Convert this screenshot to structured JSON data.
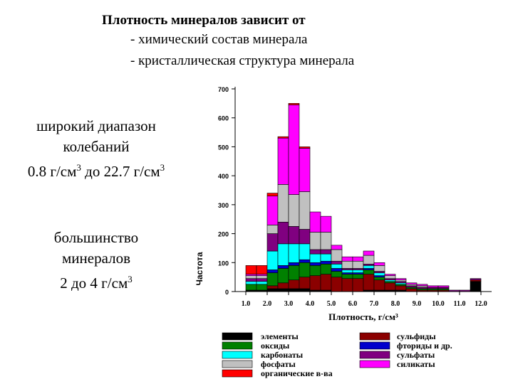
{
  "slide": {
    "title": "Плотность минералов зависит от",
    "bullets": [
      "- химический состав минерала",
      "- кристаллическая структура минерала"
    ],
    "block1": {
      "line1": "широкий диапазон",
      "line2": "колебаний",
      "line3_a": "0.8 г/см",
      "line3_b": " до 22.7 г/см",
      "sup": "3"
    },
    "block2": {
      "line1": "большинство",
      "line2": "минералов",
      "line3_a": "2 до 4 г/см",
      "sup": "3"
    }
  },
  "chart_data": {
    "type": "bar",
    "stacked": true,
    "xlabel": "Плотность, г/см³",
    "ylabel": "Частота",
    "ylim": [
      0,
      700
    ],
    "yticks": [
      0,
      100,
      200,
      300,
      400,
      500,
      600,
      700
    ],
    "xlim": [
      0.5,
      12.5
    ],
    "xticks": [
      "1.0",
      "2.0",
      "3.0",
      "4.0",
      "5.0",
      "6.0",
      "7.0",
      "8.0",
      "9.0",
      "10.0",
      "11.0",
      "12.0"
    ],
    "bin_width": 0.5,
    "bin_starts": [
      0.5,
      1.0,
      1.5,
      2.0,
      2.5,
      3.0,
      3.5,
      4.0,
      4.5,
      5.0,
      5.5,
      6.0,
      6.5,
      7.0,
      7.5,
      8.0,
      8.5,
      9.0,
      9.5,
      10.0,
      10.5,
      11.0,
      11.5
    ],
    "series": [
      {
        "name": "элементы",
        "color": "#000000",
        "values": [
          0,
          5,
          5,
          10,
          10,
          10,
          10,
          5,
          5,
          0,
          0,
          0,
          5,
          5,
          5,
          5,
          0,
          0,
          0,
          0,
          0,
          0,
          35
        ]
      },
      {
        "name": "сульфиды",
        "color": "#8b0000",
        "values": [
          0,
          0,
          0,
          10,
          20,
          30,
          40,
          50,
          55,
          50,
          45,
          45,
          55,
          35,
          25,
          15,
          10,
          5,
          5,
          5,
          0,
          0,
          5
        ]
      },
      {
        "name": "оксиды",
        "color": "#008000",
        "values": [
          0,
          20,
          20,
          45,
          50,
          50,
          50,
          35,
          35,
          20,
          15,
          15,
          15,
          10,
          5,
          5,
          5,
          5,
          5,
          5,
          0,
          0,
          0
        ]
      },
      {
        "name": "фториды и др.",
        "color": "#0000cc",
        "values": [
          0,
          0,
          0,
          10,
          10,
          10,
          10,
          10,
          10,
          10,
          5,
          5,
          5,
          5,
          0,
          0,
          0,
          0,
          0,
          0,
          0,
          0,
          0
        ]
      },
      {
        "name": "карбонаты",
        "color": "#00ffff",
        "values": [
          0,
          10,
          10,
          65,
          75,
          65,
          55,
          30,
          25,
          15,
          10,
          10,
          10,
          10,
          5,
          5,
          0,
          0,
          0,
          0,
          0,
          0,
          0
        ]
      },
      {
        "name": "сульфаты",
        "color": "#800080",
        "values": [
          0,
          10,
          10,
          60,
          75,
          60,
          50,
          15,
          15,
          10,
          5,
          5,
          5,
          5,
          5,
          5,
          5,
          5,
          5,
          5,
          5,
          5,
          5
        ]
      },
      {
        "name": "фосфаты",
        "color": "#c0c0c0",
        "values": [
          0,
          10,
          10,
          30,
          130,
          110,
          130,
          60,
          60,
          40,
          25,
          25,
          30,
          20,
          10,
          5,
          5,
          5,
          0,
          0,
          0,
          0,
          0
        ]
      },
      {
        "name": "силикаты",
        "color": "#ff00ff",
        "values": [
          0,
          5,
          5,
          100,
          160,
          310,
          150,
          70,
          55,
          15,
          15,
          15,
          15,
          10,
          5,
          5,
          5,
          5,
          5,
          5,
          0,
          0,
          0
        ]
      },
      {
        "name": "органические в-ва",
        "color": "#ff0000",
        "values": [
          0,
          30,
          30,
          10,
          5,
          5,
          5,
          0,
          0,
          0,
          0,
          0,
          0,
          0,
          0,
          0,
          0,
          0,
          0,
          0,
          0,
          0,
          0
        ]
      }
    ],
    "legend": {
      "placement": "bottom",
      "left_column": [
        "элементы",
        "оксиды",
        "карбонаты",
        "фосфаты",
        "органические в-ва"
      ],
      "right_column": [
        "сульфиды",
        "фториды и др.",
        "сульфаты",
        "силикаты"
      ]
    }
  }
}
